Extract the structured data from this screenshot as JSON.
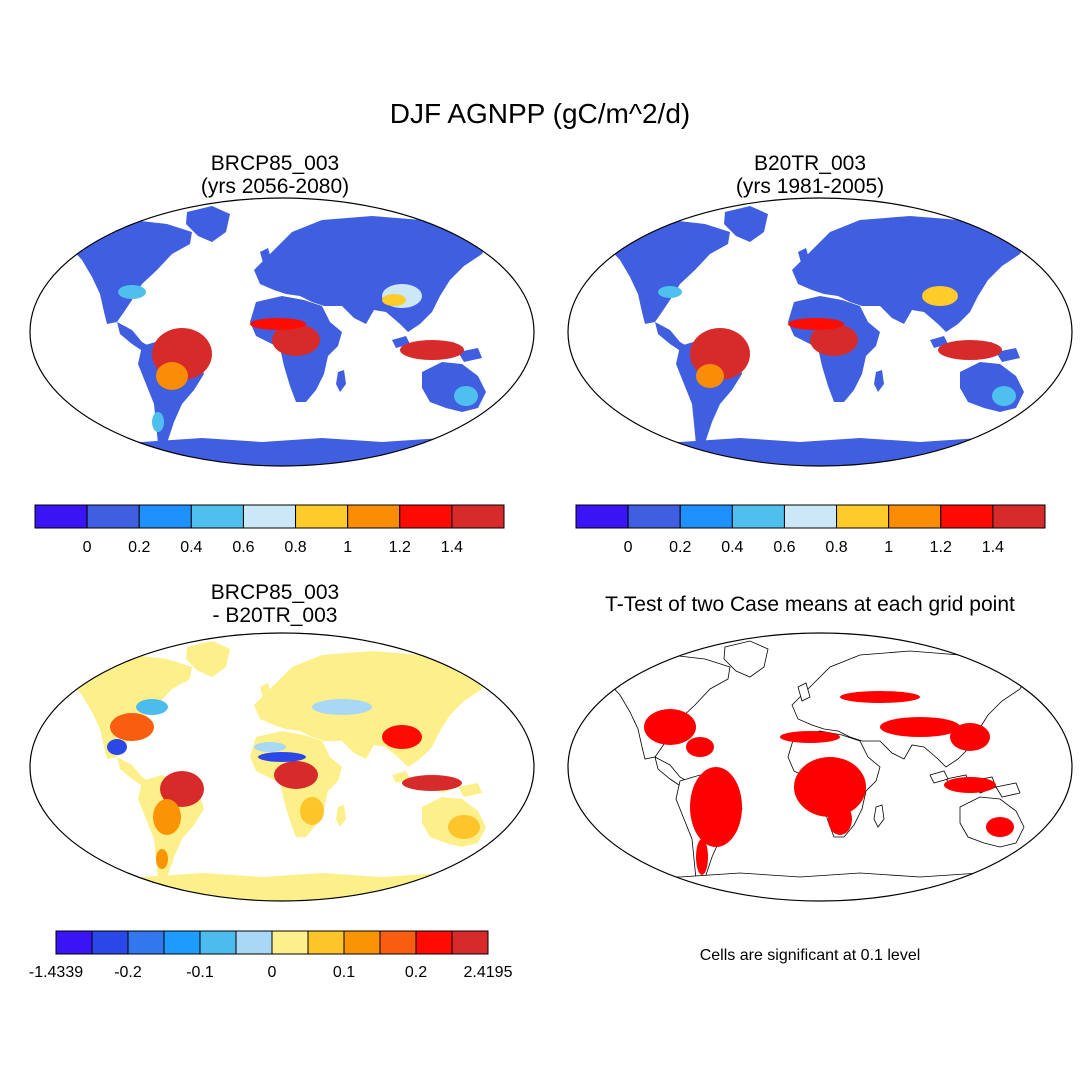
{
  "figure": {
    "title": "DJF AGNPP (gC/m^2/d)"
  },
  "panels": [
    {
      "id": "p1",
      "title_line1": "BRCP85_003",
      "title_line2": "(yrs 2056-2080)",
      "kind": "absolute"
    },
    {
      "id": "p2",
      "title_line1": "B20TR_003",
      "title_line2": "(yrs 1981-2005)",
      "kind": "absolute"
    },
    {
      "id": "p3",
      "title_line1": "BRCP85_003",
      "title_line2": "- B20TR_003",
      "kind": "difference"
    },
    {
      "id": "p4",
      "title_line1": "T-Test of two Case means at each grid point",
      "kind": "significance",
      "note": "Cells are significant at 0.1 level",
      "significant_color": "#ff0000"
    }
  ],
  "colorbars": {
    "absolute": {
      "colors": [
        "#3a14f5",
        "#3f5fe0",
        "#1e90ff",
        "#4fc0ee",
        "#cce8f8",
        "#fdcb2a",
        "#fb8c05",
        "#fe0b03",
        "#d72b2b"
      ],
      "labels": [
        "0",
        "0.2",
        "0.4",
        "0.6",
        "0.8",
        "1",
        "1.2",
        "1.4"
      ]
    },
    "difference": {
      "colors": [
        "#3a14f5",
        "#2a48e8",
        "#3377ee",
        "#1e9bff",
        "#4cbcee",
        "#a8d8f5",
        "#fdf08a",
        "#fdc52a",
        "#fb9405",
        "#f95d10",
        "#fe0b03",
        "#d72b2b"
      ],
      "labels": [
        "-1.4339",
        "-0.2",
        "-0.1",
        "0",
        "0.1",
        "0.2",
        "2.4195"
      ]
    }
  }
}
